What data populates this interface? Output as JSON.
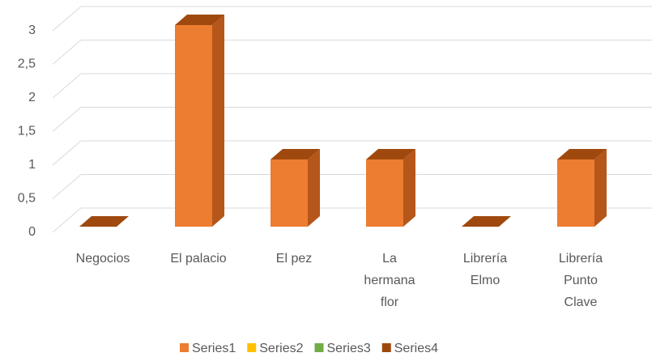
{
  "chart_data": {
    "type": "bar3d",
    "categories": [
      "Negocios",
      "El palacio",
      "El pez",
      "La hermana flor",
      "Librería Elmo",
      "Librería Punto Clave"
    ],
    "series": [
      {
        "name": "Series1",
        "color": "#ED7D31",
        "values": [
          0,
          3,
          1,
          1,
          0,
          1
        ]
      },
      {
        "name": "Series2",
        "color": "#FFC000",
        "values": [
          null,
          null,
          null,
          null,
          null,
          null
        ]
      },
      {
        "name": "Series3",
        "color": "#70AD47",
        "values": [
          null,
          null,
          null,
          null,
          null,
          null
        ]
      },
      {
        "name": "Series4",
        "color": "#9E480E",
        "values": [
          null,
          null,
          null,
          null,
          null,
          null
        ]
      }
    ],
    "ylim": [
      0,
      3
    ],
    "yticks": [
      0,
      {
        "value": 0.5,
        "label": "0,5"
      },
      1,
      {
        "value": 1.5,
        "label": "1,5"
      },
      2,
      {
        "value": 2.5,
        "label": "2,5"
      },
      3
    ],
    "grid": true,
    "legend": "bottom"
  }
}
